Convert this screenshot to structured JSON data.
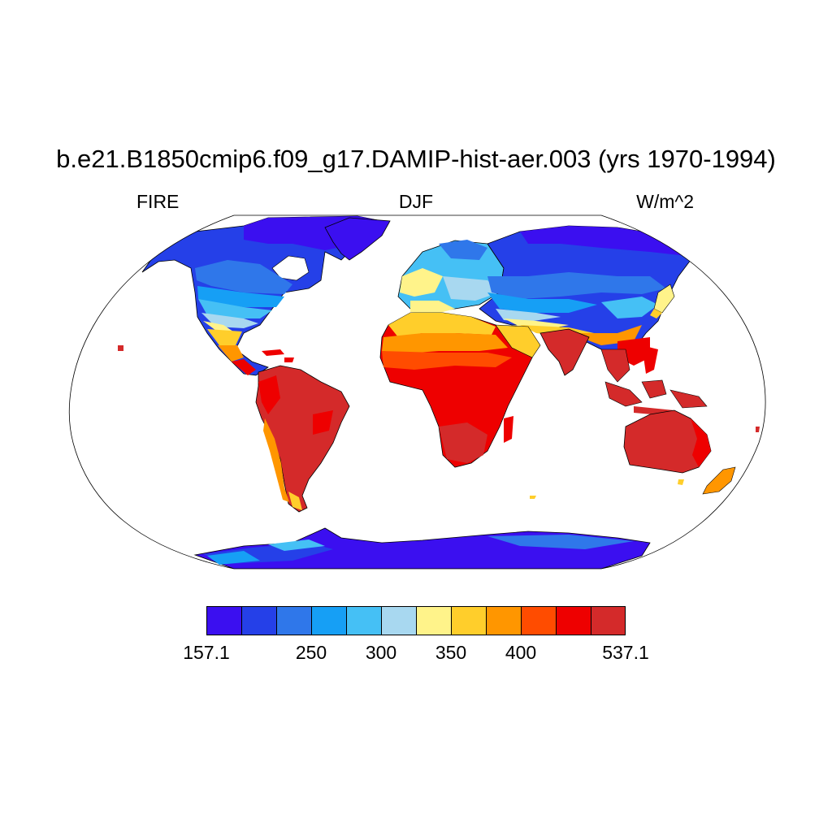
{
  "title": "b.e21.B1850cmip6.f09_g17.DAMIP-hist-aer.003 (yrs 1970-1994)",
  "subtitle": {
    "left": "FIRE",
    "center": "DJF",
    "right": "W/m^2"
  },
  "colorbar": {
    "colors": [
      "#3b0ff0",
      "#2540e8",
      "#2f77ea",
      "#169ff5",
      "#45c0f5",
      "#a8d8f0",
      "#fff38a",
      "#ffce2b",
      "#ff9600",
      "#ff4c00",
      "#ee0000",
      "#d42a2a"
    ],
    "labels": [
      {
        "text": "157.1",
        "boundary": 0
      },
      {
        "text": "250",
        "boundary": 3
      },
      {
        "text": "300",
        "boundary": 5
      },
      {
        "text": "350",
        "boundary": 7
      },
      {
        "text": "400",
        "boundary": 9
      },
      {
        "text": "537.1",
        "boundary": 12
      }
    ]
  },
  "map": {
    "projection": "robinson",
    "ocean_color": "#ffffff",
    "coastline_color": "#000000"
  }
}
